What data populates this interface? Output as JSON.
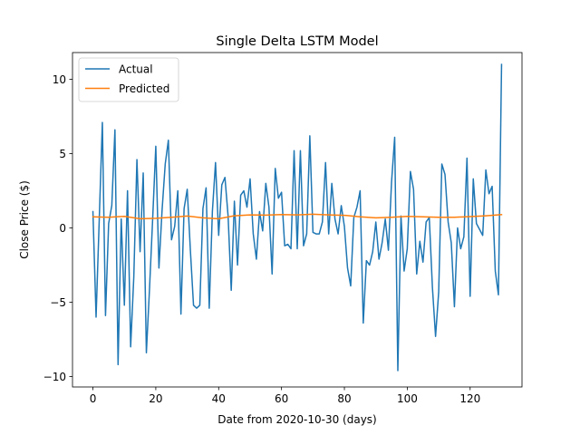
{
  "chart_data": {
    "type": "line",
    "title": "Single Delta LSTM Model",
    "xlabel": "Date from 2020-10-30 (days)",
    "ylabel": "Close Price ($)",
    "xlim": [
      -6.5,
      136.5
    ],
    "ylim": [
      -10.7,
      11.8
    ],
    "xticks": [
      0,
      20,
      40,
      60,
      80,
      100,
      120
    ],
    "yticks": [
      -10,
      -5,
      0,
      5,
      10
    ],
    "grid": false,
    "legend_position": "top-left",
    "series": [
      {
        "name": "Actual",
        "color": "#1f77b4",
        "x": [
          0,
          1,
          2,
          3,
          4,
          5,
          6,
          7,
          8,
          9,
          10,
          11,
          12,
          13,
          14,
          15,
          16,
          17,
          18,
          19,
          20,
          21,
          22,
          23,
          24,
          25,
          26,
          27,
          28,
          29,
          30,
          31,
          32,
          33,
          34,
          35,
          36,
          37,
          38,
          39,
          40,
          41,
          42,
          43,
          44,
          45,
          46,
          47,
          48,
          49,
          50,
          51,
          52,
          53,
          54,
          55,
          56,
          57,
          58,
          59,
          60,
          61,
          62,
          63,
          64,
          65,
          66,
          67,
          68,
          69,
          70,
          71,
          72,
          73,
          74,
          75,
          76,
          77,
          78,
          79,
          80,
          81,
          82,
          83,
          84,
          85,
          86,
          87,
          88,
          89,
          90,
          91,
          92,
          93,
          94,
          95,
          96,
          97,
          98,
          99,
          100,
          101,
          102,
          103,
          104,
          105,
          106,
          107,
          108,
          109,
          110,
          111,
          112,
          113,
          114,
          115,
          116,
          117,
          118,
          119,
          120,
          121,
          122,
          123,
          124,
          125,
          126,
          127,
          128,
          129,
          130
        ],
        "values": [
          1.1,
          -6.0,
          0.5,
          7.1,
          -5.9,
          0.3,
          1.5,
          6.6,
          -9.2,
          0.6,
          -5.2,
          2.5,
          -8.0,
          -3.3,
          4.6,
          -1.6,
          3.7,
          -8.4,
          -4.1,
          0.6,
          5.5,
          -2.7,
          1.2,
          4.3,
          5.9,
          -0.8,
          0.1,
          2.5,
          -5.8,
          1.3,
          2.6,
          -1.5,
          -5.2,
          -5.4,
          -5.2,
          1.3,
          2.7,
          -5.4,
          1.1,
          4.4,
          -0.5,
          2.9,
          3.4,
          0.8,
          -4.2,
          1.8,
          -2.5,
          2.2,
          2.5,
          1.4,
          3.3,
          -0.4,
          -2.1,
          1.1,
          -0.2,
          3.0,
          1.4,
          -3.1,
          4.0,
          2.0,
          2.4,
          -1.2,
          -1.1,
          -1.4,
          5.2,
          -1.4,
          5.2,
          -1.2,
          -0.4,
          6.2,
          -0.3,
          -0.4,
          -0.4,
          0.4,
          4.4,
          -0.4,
          3.0,
          0.6,
          -0.4,
          1.5,
          0.1,
          -2.7,
          -3.9,
          0.7,
          1.4,
          2.5,
          -6.4,
          -2.2,
          -2.5,
          -1.6,
          0.4,
          -2.1,
          -1.0,
          0.6,
          -1.5,
          3.1,
          6.1,
          -9.6,
          0.8,
          -2.9,
          -1.4,
          3.8,
          2.6,
          -3.1,
          -0.9,
          -2.3,
          0.4,
          0.7,
          -4.0,
          -7.3,
          -4.3,
          4.3,
          3.6,
          0.4,
          -1.0,
          -5.3,
          0.0,
          -1.4,
          -0.6,
          4.7,
          -4.6,
          3.3,
          0.3,
          -0.1,
          -0.5,
          3.9,
          2.3,
          2.8,
          -2.9,
          -4.5,
          11.0
        ]
      },
      {
        "name": "Predicted",
        "color": "#ff7f0e",
        "x": [
          0,
          5,
          10,
          15,
          20,
          25,
          30,
          35,
          40,
          45,
          50,
          55,
          60,
          65,
          70,
          75,
          80,
          85,
          90,
          95,
          100,
          105,
          110,
          115,
          120,
          125,
          130
        ],
        "values": [
          0.75,
          0.72,
          0.78,
          0.62,
          0.65,
          0.72,
          0.8,
          0.68,
          0.62,
          0.82,
          0.88,
          0.86,
          0.9,
          0.88,
          0.92,
          0.88,
          0.85,
          0.75,
          0.68,
          0.72,
          0.78,
          0.75,
          0.72,
          0.72,
          0.76,
          0.82,
          0.9
        ]
      }
    ]
  }
}
